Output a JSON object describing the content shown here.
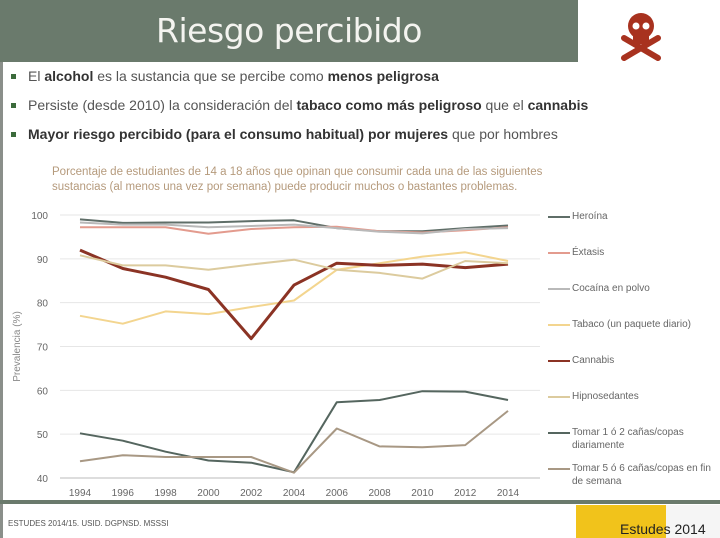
{
  "title": "Riesgo percibido",
  "bullets": [
    {
      "parts": [
        {
          "t": "El ",
          "b": false
        },
        {
          "t": "alcohol",
          "b": true
        },
        {
          "t": " es la sustancia que se percibe como ",
          "b": false
        },
        {
          "t": "menos peligrosa",
          "b": true
        }
      ]
    },
    {
      "parts": [
        {
          "t": "Persiste (desde 2010) la consideración del ",
          "b": false
        },
        {
          "t": "tabaco como más peligroso",
          "b": true
        },
        {
          "t": " que el ",
          "b": false
        },
        {
          "t": "cannabis",
          "b": true
        }
      ]
    },
    {
      "parts": [
        {
          "t": "Mayor riesgo percibido (para el consumo habitual) por mujeres",
          "b": true
        },
        {
          "t": " que por hombres",
          "b": false
        }
      ]
    }
  ],
  "footer": {
    "source": "ESTUDES 2014/15. USID. DGPNSD. MSSSI",
    "watermark": "Estudes 2014"
  },
  "icons": {
    "skull": "skull-crossbones-icon",
    "logo": "ministerio-logo"
  },
  "chart_data": {
    "type": "line",
    "title": "Porcentaje de estudiantes de 14 a 18 años que opinan que consumir cada una de las siguientes sustancias (al menos una vez por semana) puede producir muchos o bastantes problemas.",
    "xlabel": "",
    "ylabel": "Prevalencia (%)",
    "ylim": [
      40,
      100
    ],
    "yticks": [
      "100",
      "90",
      "80",
      "70",
      "60",
      "50",
      "40"
    ],
    "x": [
      "1994",
      "1996",
      "1998",
      "2000",
      "2002",
      "2004",
      "2006",
      "2008",
      "2010",
      "2012",
      "2014"
    ],
    "grid": true,
    "legend": "right",
    "series": [
      {
        "name": "Heroína",
        "color": "#5f6e68",
        "values": [
          99,
          98.2,
          98.3,
          98.3,
          98.6,
          98.8,
          97,
          96.3,
          96.3,
          97,
          97.6
        ]
      },
      {
        "name": "Éxtasis",
        "color": "#e39b8e",
        "values": [
          97.2,
          97.2,
          97.2,
          95.7,
          96.8,
          97.2,
          97.3,
          96.3,
          96,
          96.5,
          97.2
        ]
      },
      {
        "name": "Cocaína en polvo",
        "color": "#b9b9b9",
        "values": [
          98.3,
          97.8,
          97.8,
          97.2,
          97.5,
          97.8,
          97,
          96.2,
          95.8,
          96.8,
          97
        ]
      },
      {
        "name": "Tabaco (un paquete diario)",
        "color": "#f3d58f",
        "values": [
          77,
          75.2,
          78,
          77.4,
          79,
          80.5,
          87.5,
          89,
          90.5,
          91.5,
          89.5
        ]
      },
      {
        "name": "Cannabis",
        "color": "#8b3324",
        "values": [
          92,
          87.8,
          85.8,
          83,
          71.8,
          84,
          89,
          88.5,
          88.8,
          88,
          88.8
        ]
      },
      {
        "name": "Hipnosedantes",
        "color": "#dccb9e",
        "values": [
          90.8,
          88.5,
          88.5,
          87.5,
          88.7,
          89.8,
          87.5,
          86.8,
          85.5,
          89.5,
          89
        ]
      },
      {
        "name": "Tomar 1 ó 2 cañas/copas diariamente",
        "color": "#55665f",
        "values": [
          50.2,
          48.5,
          46,
          44,
          43.5,
          41.3,
          57.3,
          57.8,
          59.8,
          59.7,
          57.8
        ]
      },
      {
        "name": "Tomar 5 ó 6 cañas/copas en fin de semana",
        "color": "#a89884",
        "values": [
          43.8,
          45.2,
          44.8,
          44.8,
          44.8,
          41.2,
          51.3,
          47.2,
          47,
          47.5,
          55.3
        ]
      }
    ]
  }
}
